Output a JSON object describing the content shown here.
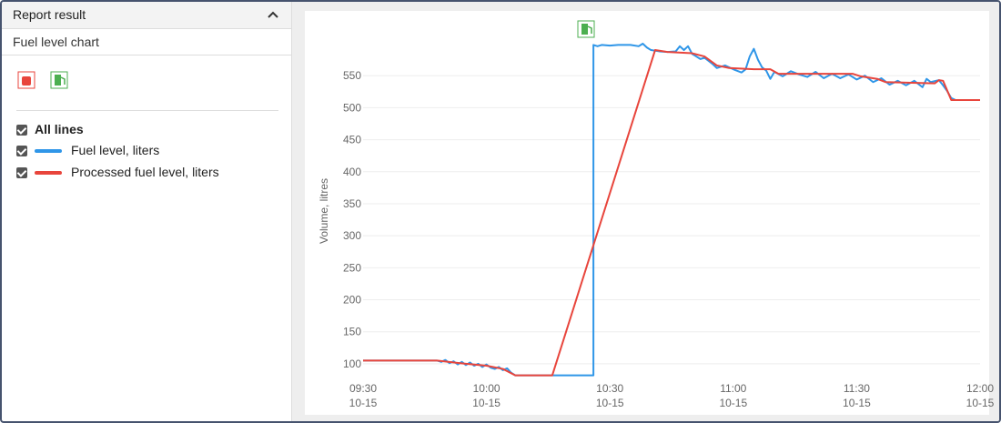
{
  "panel": {
    "title": "Report result",
    "subtitle": "Fuel level chart",
    "all_lines": "All lines"
  },
  "chart_data": {
    "type": "line",
    "y_label": "Volume, litres",
    "ylim": [
      80,
      600
    ],
    "yticks": [
      100,
      150,
      200,
      250,
      300,
      350,
      400,
      450,
      500,
      550
    ],
    "grid": true,
    "xlim": [
      "09:30",
      "12:00"
    ],
    "xticks": [
      {
        "value": "09:30",
        "label": [
          "09:30",
          "10-15"
        ]
      },
      {
        "value": "10:00",
        "label": [
          "10:00",
          "10-15"
        ]
      },
      {
        "value": "10:30",
        "label": [
          "10:30",
          "10-15"
        ]
      },
      {
        "value": "11:00",
        "label": [
          "11:00",
          "10-15"
        ]
      },
      {
        "value": "11:30",
        "label": [
          "11:30",
          "10-15"
        ]
      },
      {
        "value": "12:00",
        "label": [
          "12:00",
          "10-15"
        ]
      }
    ],
    "series": [
      {
        "name": "Fuel level, liters",
        "color": "#2f96e8",
        "x": [
          "09:30",
          "09:48",
          "09:49",
          "09:50",
          "09:51",
          "09:52",
          "09:53",
          "09:54",
          "09:55",
          "09:56",
          "09:57",
          "09:58",
          "09:59",
          "10:00",
          "10:01",
          "10:02",
          "10:03",
          "10:04",
          "10:05",
          "10:06",
          "10:07",
          "10:26",
          "10:26",
          "10:27",
          "10:28",
          "10:30",
          "10:32",
          "10:35",
          "10:37",
          "10:38",
          "10:39",
          "10:40",
          "10:42",
          "10:44",
          "10:46",
          "10:47",
          "10:48",
          "10:49",
          "10:50",
          "10:51",
          "10:52",
          "10:53",
          "10:55",
          "10:56",
          "10:58",
          "11:00",
          "11:02",
          "11:03",
          "11:04",
          "11:05",
          "11:06",
          "11:07",
          "11:08",
          "11:09",
          "11:10",
          "11:12",
          "11:14",
          "11:16",
          "11:18",
          "11:20",
          "11:22",
          "11:24",
          "11:26",
          "11:28",
          "11:30",
          "11:32",
          "11:34",
          "11:36",
          "11:38",
          "11:40",
          "11:42",
          "11:44",
          "11:46",
          "11:47",
          "11:48",
          "11:50",
          "11:51",
          "11:52",
          "11:53",
          "11:54",
          "11:58",
          "12:00"
        ],
        "values": [
          105,
          105,
          103,
          106,
          101,
          104,
          99,
          103,
          98,
          102,
          97,
          100,
          95,
          99,
          94,
          92,
          95,
          90,
          93,
          86,
          82,
          82,
          598,
          596,
          598,
          597,
          598,
          598,
          596,
          600,
          594,
          590,
          588,
          587,
          588,
          596,
          590,
          596,
          584,
          580,
          576,
          578,
          568,
          562,
          566,
          560,
          555,
          560,
          580,
          592,
          575,
          563,
          558,
          545,
          556,
          549,
          557,
          552,
          548,
          556,
          546,
          553,
          546,
          552,
          544,
          550,
          540,
          546,
          536,
          542,
          535,
          542,
          532,
          545,
          540,
          543,
          535,
          526,
          515,
          512,
          512,
          512
        ]
      },
      {
        "name": "Processed fuel level, liters",
        "color": "#e8453c",
        "x": [
          "09:30",
          "09:48",
          "09:55",
          "10:00",
          "10:04",
          "10:07",
          "10:16",
          "10:41",
          "10:44",
          "10:50",
          "10:53",
          "10:56",
          "10:59",
          "11:05",
          "11:09",
          "11:11",
          "11:29",
          "11:31",
          "11:35",
          "11:37",
          "11:49",
          "11:50",
          "11:51",
          "11:53",
          "12:00"
        ],
        "values": [
          105,
          105,
          100,
          97,
          92,
          82,
          82,
          590,
          587,
          585,
          580,
          566,
          562,
          560,
          560,
          553,
          553,
          549,
          545,
          540,
          538,
          543,
          542,
          512,
          512
        ]
      }
    ]
  }
}
